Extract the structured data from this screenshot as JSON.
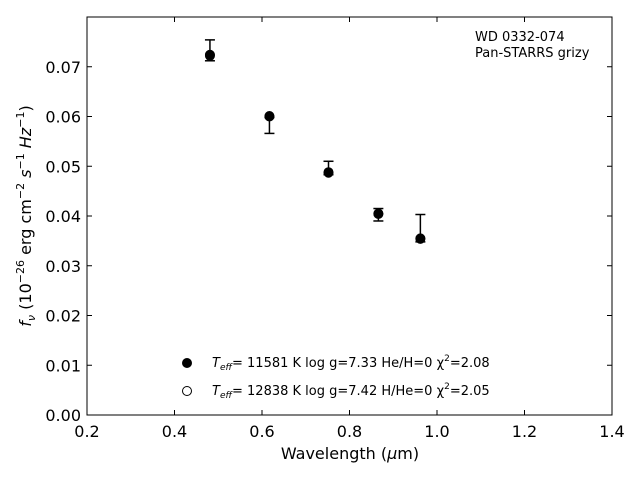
{
  "chart_data": {
    "type": "scatter",
    "annotation": [
      "WD 0332-074",
      "Pan-STARRS grizy"
    ],
    "xlabel": {
      "main": "Wavelength (",
      "mu": "μ",
      "rest": "m)"
    },
    "ylabel": {
      "prefix": "f",
      "sub": "ν",
      "unit": " (10",
      "exp": "−26",
      "rest": " erg cm",
      "exp2": "−2",
      "s": " s",
      "exp3": "−1",
      "hz": " Hz",
      "exp4": "−1",
      "close": ")"
    },
    "xlim": [
      0.2,
      1.4
    ],
    "ylim": [
      0.0,
      0.08
    ],
    "xticks": [
      0.2,
      0.4,
      0.6,
      0.8,
      1.0,
      1.2,
      1.4
    ],
    "xtick_labels": [
      "0.2",
      "0.4",
      "0.6",
      "0.8",
      "1.0",
      "1.2",
      "1.4"
    ],
    "yticks": [
      0.0,
      0.01,
      0.02,
      0.03,
      0.04,
      0.05,
      0.06,
      0.07
    ],
    "ytick_labels": [
      "0.00",
      "0.01",
      "0.02",
      "0.03",
      "0.04",
      "0.05",
      "0.06",
      "0.07"
    ],
    "observed": {
      "x": [
        0.481,
        0.617,
        0.752,
        0.866,
        0.962
      ],
      "y": [
        0.0712,
        0.0566,
        0.0483,
        0.039,
        0.0348
      ],
      "yerr_up": [
        0.0042,
        0.0032,
        0.0027,
        0.0025,
        0.0055
      ],
      "yerr_down": [
        0.0,
        0.0,
        0.0,
        0.0,
        0.0
      ]
    },
    "series": [
      {
        "marker": "filled",
        "legend": {
          "teff_label": "T",
          "teff_sub": "eff",
          "text": "= 11581 K  log g=7.33  He/H=0  χ",
          "chi_sup": "2",
          "tail": "=2.08"
        },
        "x": [
          0.481,
          0.617,
          0.752,
          0.866,
          0.962
        ],
        "y": [
          0.0724,
          0.0601,
          0.0488,
          0.0405,
          0.0355
        ]
      },
      {
        "marker": "open",
        "legend": {
          "teff_label": "T",
          "teff_sub": "eff",
          "text": "= 12838 K  log g=7.42  H/He=0  χ",
          "chi_sup": "2",
          "tail": "=2.05"
        },
        "x": [
          0.481,
          0.617,
          0.752,
          0.866,
          0.962
        ],
        "y": [
          0.0722,
          0.06,
          0.0487,
          0.0404,
          0.0354
        ]
      }
    ],
    "legend_position": "lower-center",
    "grid": false,
    "colors": {
      "marker": "#000000",
      "axes": "#000000",
      "background": "#ffffff"
    }
  }
}
